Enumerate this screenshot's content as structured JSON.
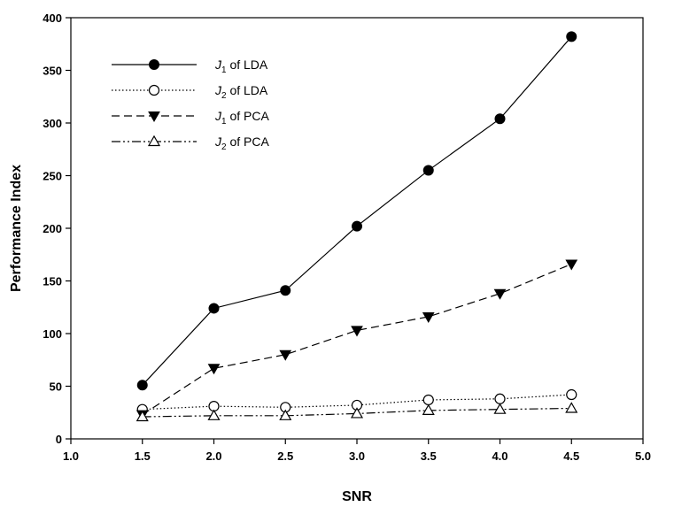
{
  "chart_data": {
    "type": "line",
    "title": "",
    "xlabel": "SNR",
    "ylabel": "Performance Index",
    "xlim": [
      1.0,
      5.0
    ],
    "ylim": [
      0,
      400
    ],
    "x_ticks": [
      "1.0",
      "1.5",
      "2.0",
      "2.5",
      "3.0",
      "3.5",
      "4.0",
      "4.5",
      "5.0"
    ],
    "y_ticks": [
      "0",
      "50",
      "100",
      "150",
      "200",
      "250",
      "300",
      "350",
      "400"
    ],
    "grid": false,
    "legend_position": "top-left",
    "x": [
      1.5,
      2.0,
      2.5,
      3.0,
      3.5,
      4.0,
      4.5
    ],
    "series": [
      {
        "legend": {
          "symbol": "J",
          "sub": "1",
          "rest": " of LDA"
        },
        "marker": "filled-circle",
        "line": "solid",
        "values": [
          51,
          124,
          141,
          202,
          255,
          304,
          382
        ]
      },
      {
        "legend": {
          "symbol": "J",
          "sub": "2",
          "rest": " of LDA"
        },
        "marker": "open-circle",
        "line": "dotted",
        "values": [
          28,
          31,
          30,
          32,
          37,
          38,
          42
        ]
      },
      {
        "legend": {
          "symbol": "J",
          "sub": "1",
          "rest": " of PCA"
        },
        "marker": "filled-triangle-down",
        "line": "dashed",
        "values": [
          23,
          67,
          80,
          103,
          116,
          138,
          166
        ]
      },
      {
        "legend": {
          "symbol": "J",
          "sub": "2",
          "rest": " of PCA"
        },
        "marker": "open-triangle-up",
        "line": "dash-dot-dot",
        "values": [
          21,
          22,
          22,
          24,
          27,
          28,
          29
        ]
      }
    ]
  }
}
